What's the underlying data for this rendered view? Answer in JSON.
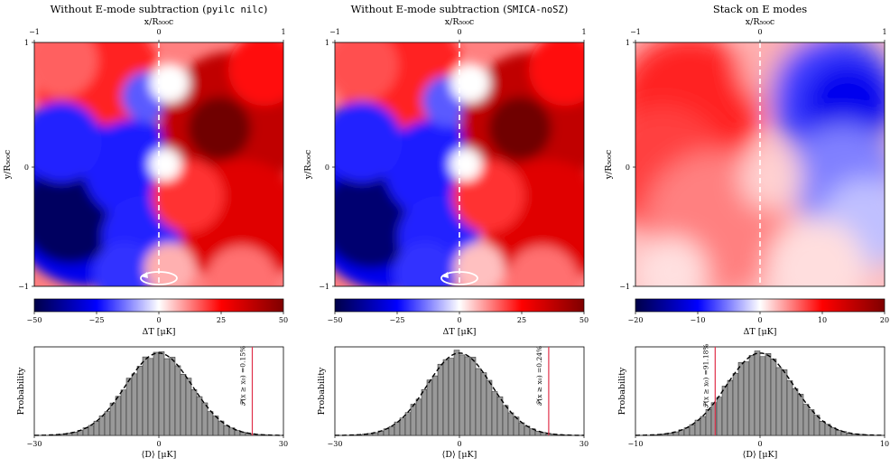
{
  "panels": [
    {
      "title_pre": "Without E-mode subtraction (",
      "title_code": "pyilc nilc",
      "title_post": ")",
      "xlabel_top": "x/R₅₀₀c",
      "ylabel": "y/R₅₀₀c",
      "map_ticks_x": [
        "−1",
        "0",
        "1"
      ],
      "map_ticks_y": [
        "1",
        "0",
        "−1"
      ],
      "has_rotation_marker": true,
      "colorbar": {
        "min": -50,
        "max": 50,
        "ticks": [
          "−50",
          "−25",
          "0",
          "25",
          "50"
        ],
        "label": "ΔT [μK]"
      },
      "hist": {
        "xlim": [
          -30,
          30
        ],
        "ticks": [
          "−30",
          "0",
          "30"
        ],
        "sigma": 8.0,
        "x0": 22.5,
        "annotation": "𝒫(x ≥ x₀) =0.15%",
        "xlabel": "⟨D⟩ [μK]",
        "ylabel": "Probability"
      }
    },
    {
      "title_pre": "Without E-mode subtraction (",
      "title_code": "SMICA-noSZ",
      "title_post": ")",
      "xlabel_top": "x/R₅₀₀c",
      "ylabel": "y/R₅₀₀c",
      "map_ticks_x": [
        "−1",
        "0",
        "1"
      ],
      "map_ticks_y": [
        "1",
        "0",
        "−1"
      ],
      "has_rotation_marker": true,
      "colorbar": {
        "min": -50,
        "max": 50,
        "ticks": [
          "−50",
          "−25",
          "0",
          "25",
          "50"
        ],
        "label": "ΔT [μK]"
      },
      "hist": {
        "xlim": [
          -30,
          30
        ],
        "ticks": [
          "−30",
          "0",
          "30"
        ],
        "sigma": 7.8,
        "x0": 21.5,
        "annotation": "𝒫(x ≥ x₀) =0.24%",
        "xlabel": "⟨D⟩ [μK]",
        "ylabel": "Probability"
      }
    },
    {
      "title_pre": "Stack on E modes",
      "title_code": "",
      "title_post": "",
      "xlabel_top": "x/R₅₀₀c",
      "ylabel": "y/R₅₀₀c",
      "map_ticks_x": [
        "−1",
        "0",
        "1"
      ],
      "map_ticks_y": [
        "1",
        "0",
        "−1"
      ],
      "has_rotation_marker": false,
      "colorbar": {
        "min": -20,
        "max": 20,
        "ticks": [
          "−20",
          "−10",
          "0",
          "10",
          "20"
        ],
        "label": "ΔT [μK]"
      },
      "hist": {
        "xlim": [
          -10,
          10
        ],
        "ticks": [
          "−10",
          "0",
          "10"
        ],
        "sigma": 2.7,
        "x0": -3.6,
        "annotation": "𝒫(x ≥ x₀) =91.18%",
        "xlabel": "⟨D⟩ [μK]",
        "ylabel": "Probability"
      }
    }
  ],
  "chart_data": [
    {
      "type": "heatmap",
      "title": "Without E-mode subtraction (pyilc nilc)",
      "xlabel": "x/R500c",
      "ylabel": "y/R500c",
      "xlim": [
        -1,
        1
      ],
      "ylim": [
        -1,
        1
      ],
      "colorbar_label": "ΔT [μK]",
      "colorbar_range": [
        -50,
        50
      ],
      "description_values": {
        "left_region_min": -50,
        "right_region_max": 45
      }
    },
    {
      "type": "heatmap",
      "title": "Without E-mode subtraction (SMICA-noSZ)",
      "xlabel": "x/R500c",
      "ylabel": "y/R500c",
      "xlim": [
        -1,
        1
      ],
      "ylim": [
        -1,
        1
      ],
      "colorbar_label": "ΔT [μK]",
      "colorbar_range": [
        -50,
        50
      ]
    },
    {
      "type": "heatmap",
      "title": "Stack on E modes",
      "xlabel": "x/R500c",
      "ylabel": "y/R500c",
      "xlim": [
        -1,
        1
      ],
      "ylim": [
        -1,
        1
      ],
      "colorbar_label": "ΔT [μK]",
      "colorbar_range": [
        -20,
        20
      ]
    },
    {
      "type": "bar",
      "title": "",
      "xlabel": "⟨D⟩ [μK]",
      "ylabel": "Probability",
      "xlim": [
        -30,
        30
      ],
      "gaussian_sigma": 8.0,
      "marker_x0": 22.5,
      "annotation": "P(x ≥ x0) =0.15%"
    },
    {
      "type": "bar",
      "title": "",
      "xlabel": "⟨D⟩ [μK]",
      "ylabel": "Probability",
      "xlim": [
        -30,
        30
      ],
      "gaussian_sigma": 7.8,
      "marker_x0": 21.5,
      "annotation": "P(x ≥ x0) =0.24%"
    },
    {
      "type": "bar",
      "title": "",
      "xlabel": "⟨D⟩ [μK]",
      "ylabel": "Probability",
      "xlim": [
        -10,
        10
      ],
      "gaussian_sigma": 2.7,
      "marker_x0": -3.6,
      "annotation": "P(x ≥ x0) =91.18%"
    }
  ]
}
